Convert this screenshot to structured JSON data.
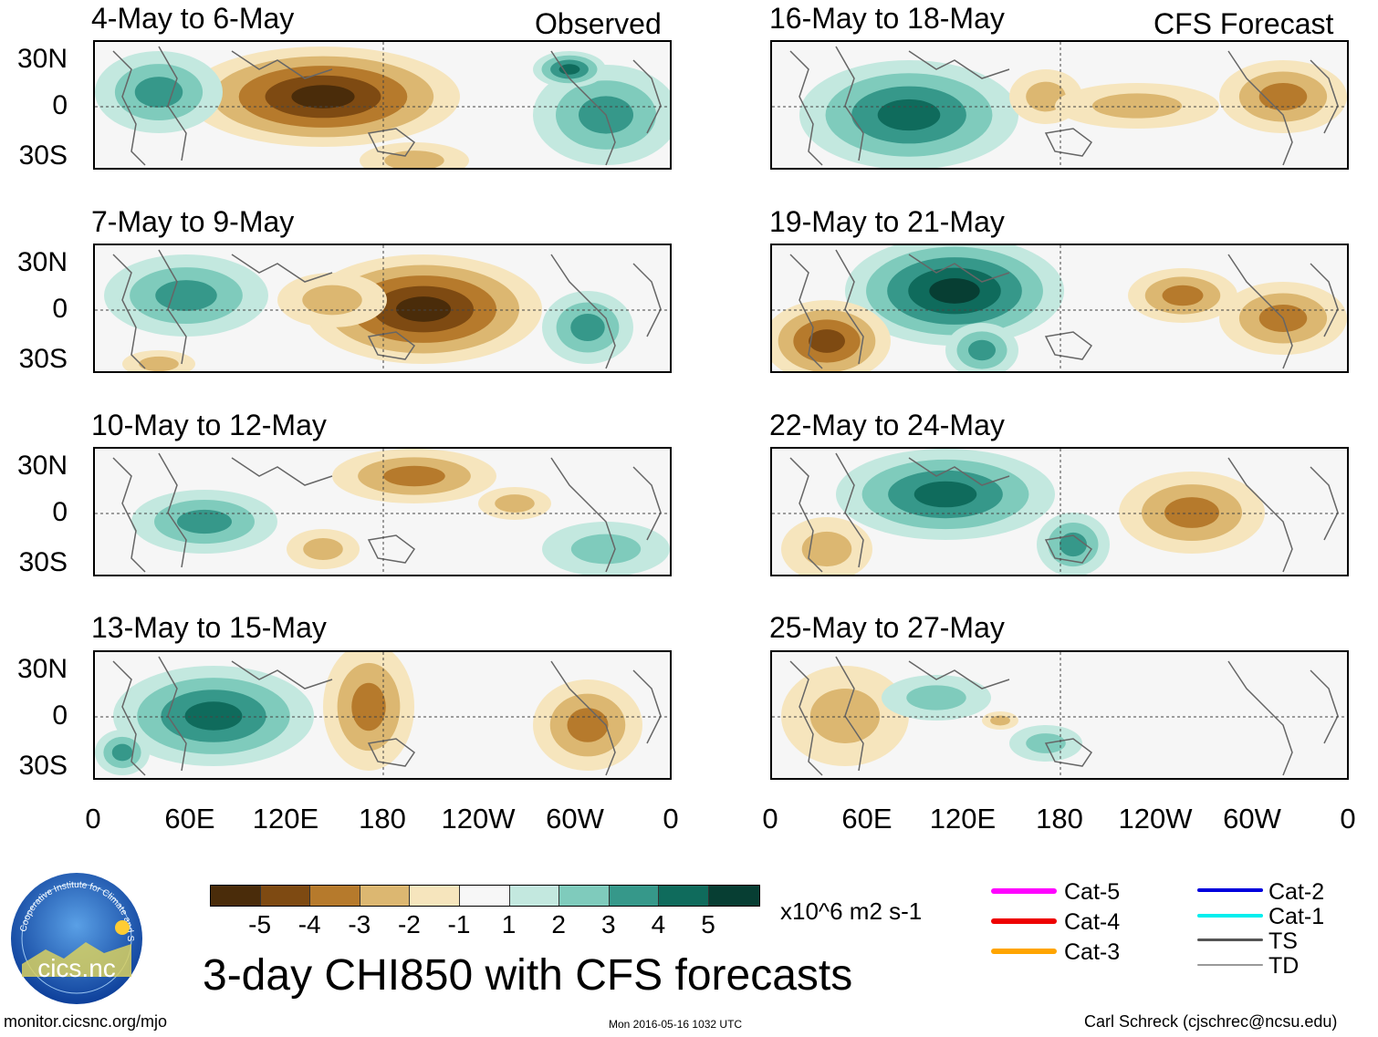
{
  "figure": {
    "main_title": "3-day CHI850 with CFS forecasts",
    "units": "x10^6 m2 s-1",
    "footer_left": "monitor.cicsnc.org/mjo",
    "footer_center": "Mon 2016-05-16 1032 UTC",
    "footer_right": "Carl Schreck (cjschrec@ncsu.edu)",
    "logo": {
      "ring_text": "Cooperative Institute for Climate and Satellites",
      "name": "cics.nc"
    }
  },
  "columns": {
    "left_label": "Observed",
    "right_label": "CFS Forecast"
  },
  "panels": {
    "obs": [
      {
        "title": "4-May to 6-May"
      },
      {
        "title": "7-May to 9-May"
      },
      {
        "title": "10-May to 12-May"
      },
      {
        "title": "13-May to 15-May"
      }
    ],
    "fcst": [
      {
        "title": "16-May to 18-May"
      },
      {
        "title": "19-May to 21-May"
      },
      {
        "title": "22-May to 24-May"
      },
      {
        "title": "25-May to 27-May"
      }
    ]
  },
  "axes": {
    "lat_labels": [
      "30N",
      "0",
      "30S"
    ],
    "lon_labels": [
      "0",
      "60E",
      "120E",
      "180",
      "120W",
      "60W",
      "0"
    ]
  },
  "colorbar": {
    "colors": [
      "#4a2c0a",
      "#7e4a12",
      "#b67a2c",
      "#dcb771",
      "#f6e5bd",
      "#f7f7f7",
      "#c3e8df",
      "#7fcbbc",
      "#36988a",
      "#0f6b5c",
      "#073e33"
    ],
    "labels": [
      "-5",
      "-4",
      "-3",
      "-2",
      "-1",
      "1",
      "2",
      "3",
      "4",
      "5"
    ]
  },
  "legend": [
    {
      "label": "Cat-5",
      "color": "#ff00ff"
    },
    {
      "label": "Cat-4",
      "color": "#ee0000"
    },
    {
      "label": "Cat-3",
      "color": "#ffa500"
    },
    {
      "label": "Cat-2",
      "color": "#0000dd"
    },
    {
      "label": "Cat-1",
      "color": "#00eeee"
    },
    {
      "label": "TS",
      "color": "#555555"
    },
    {
      "label": "TD",
      "color": "#999999"
    }
  ]
}
